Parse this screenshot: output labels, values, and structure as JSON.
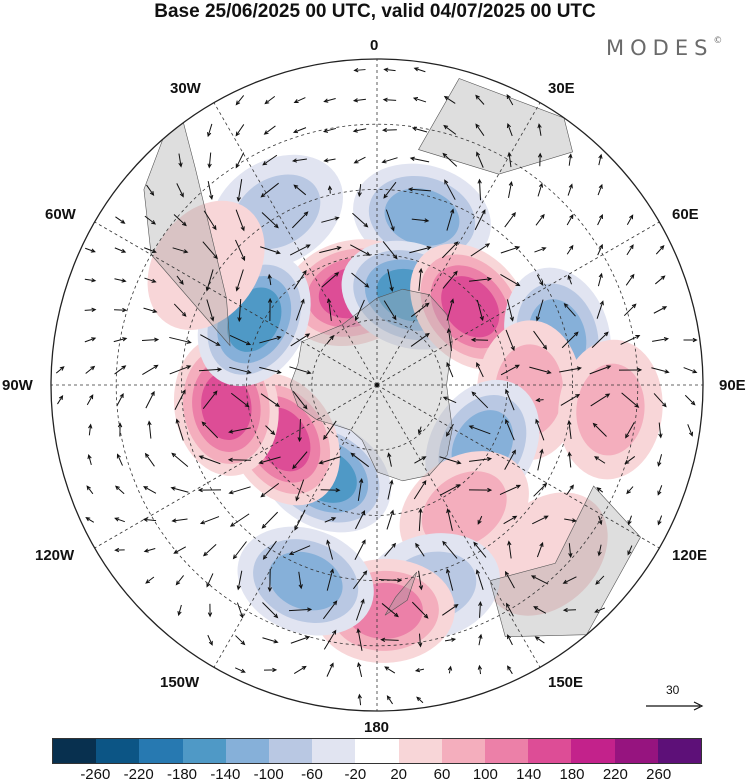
{
  "title": "Base 25/06/2025 00 UTC, valid 04/07/2025 00 UTC",
  "logo_text": "MODES",
  "logo_mark": "©",
  "map": {
    "projection": "south-polar-stereographic",
    "longitude_labels": [
      {
        "id": "lon-0",
        "text": "0"
      },
      {
        "id": "lon-30e",
        "text": "30E"
      },
      {
        "id": "lon-60e",
        "text": "60E"
      },
      {
        "id": "lon-90e",
        "text": "90E"
      },
      {
        "id": "lon-120e",
        "text": "120E"
      },
      {
        "id": "lon-150e",
        "text": "150E"
      },
      {
        "id": "lon-180",
        "text": "180"
      },
      {
        "id": "lon-150w",
        "text": "150W"
      },
      {
        "id": "lon-120w",
        "text": "120W"
      },
      {
        "id": "lon-90w",
        "text": "90W"
      },
      {
        "id": "lon-60w",
        "text": "60W"
      },
      {
        "id": "lon-30w",
        "text": "30W"
      }
    ],
    "reference_vector_label": "30"
  },
  "colorbar": {
    "colors": [
      "#08304f",
      "#0c5585",
      "#2779b1",
      "#4f99c6",
      "#86b0d9",
      "#b9c8e3",
      "#e1e4f1",
      "#ffffff",
      "#f8d6d8",
      "#f4aebd",
      "#ec80a8",
      "#dd4d96",
      "#c3228b",
      "#96147f",
      "#5d1078"
    ],
    "tick_labels": [
      "-260",
      "-220",
      "-180",
      "-140",
      "-100",
      "-60",
      "-20",
      "20",
      "60",
      "100",
      "140",
      "180",
      "220",
      "260"
    ]
  },
  "anomaly_centers": [
    {
      "lon": 330,
      "lat": -44,
      "value": -100
    },
    {
      "lon": 15,
      "lat": -50,
      "value": -140
    },
    {
      "lon": 345,
      "lat": -68,
      "value": 180
    },
    {
      "lon": 20,
      "lat": -68,
      "value": -180
    },
    {
      "lon": 50,
      "lat": -62,
      "value": 180
    },
    {
      "lon": 75,
      "lat": -47,
      "value": -140
    },
    {
      "lon": 92,
      "lat": -55,
      "value": 100
    },
    {
      "lon": 96,
      "lat": -36,
      "value": 100
    },
    {
      "lon": 120,
      "lat": -62,
      "value": -140
    },
    {
      "lon": 145,
      "lat": -55,
      "value": 100
    },
    {
      "lon": 135,
      "lat": -35,
      "value": 60
    },
    {
      "lon": 165,
      "lat": -42,
      "value": -100
    },
    {
      "lon": 178,
      "lat": -38,
      "value": 140
    },
    {
      "lon": 200,
      "lat": -42,
      "value": -140
    },
    {
      "lon": 210,
      "lat": -66,
      "value": -180
    },
    {
      "lon": 240,
      "lat": -65,
      "value": 180
    },
    {
      "lon": 262,
      "lat": -55,
      "value": 180
    },
    {
      "lon": 298,
      "lat": -58,
      "value": -180
    },
    {
      "lon": 305,
      "lat": -42,
      "value": 60
    }
  ]
}
